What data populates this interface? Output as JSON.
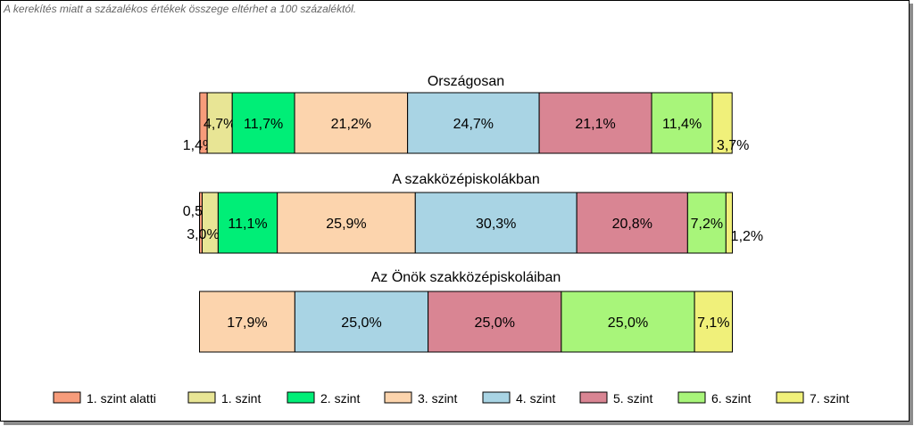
{
  "note": "A kerekítés miatt a  százalékos értékek összege eltérhet a 100 százaléktól.",
  "chart_data": {
    "type": "bar",
    "stacked": true,
    "orientation": "horizontal",
    "grid": false,
    "legend_position": "bottom",
    "categories": [
      "Országosan",
      "A szakközépiskolákban",
      "Az Önök szakközépiskoláiban"
    ],
    "series": [
      {
        "name": "1. szint alatti",
        "color": "#f79c7b",
        "values": [
          1.4,
          0.5,
          0
        ],
        "labels": [
          "1,4%",
          "0,5%",
          ""
        ]
      },
      {
        "name": "1. szint",
        "color": "#e8e595",
        "values": [
          4.7,
          3.0,
          0
        ],
        "labels": [
          "4,7%",
          "3,0%",
          ""
        ]
      },
      {
        "name": "2. szint",
        "color": "#00ee77",
        "values": [
          11.7,
          11.1,
          0
        ],
        "labels": [
          "11,7%",
          "11,1%",
          ""
        ]
      },
      {
        "name": "3. szint",
        "color": "#fcd4ad",
        "values": [
          21.2,
          25.9,
          17.9
        ],
        "labels": [
          "21,2%",
          "25,9%",
          "17,9%"
        ]
      },
      {
        "name": "4. szint",
        "color": "#a9d4e4",
        "values": [
          24.7,
          30.3,
          25.0
        ],
        "labels": [
          "24,7%",
          "30,3%",
          "25,0%"
        ]
      },
      {
        "name": "5. szint",
        "color": "#d98593",
        "values": [
          21.1,
          20.8,
          25.0
        ],
        "labels": [
          "21,1%",
          "20,8%",
          "25,0%"
        ]
      },
      {
        "name": "6. szint",
        "color": "#a8f57a",
        "values": [
          11.4,
          7.2,
          25.0
        ],
        "labels": [
          "11,4%",
          "7,2%",
          "25,0%"
        ]
      },
      {
        "name": "7. szint",
        "color": "#f0f07a",
        "values": [
          3.7,
          1.2,
          7.1
        ],
        "labels": [
          "3,7%",
          "1,2%",
          "7,1%"
        ]
      }
    ]
  }
}
